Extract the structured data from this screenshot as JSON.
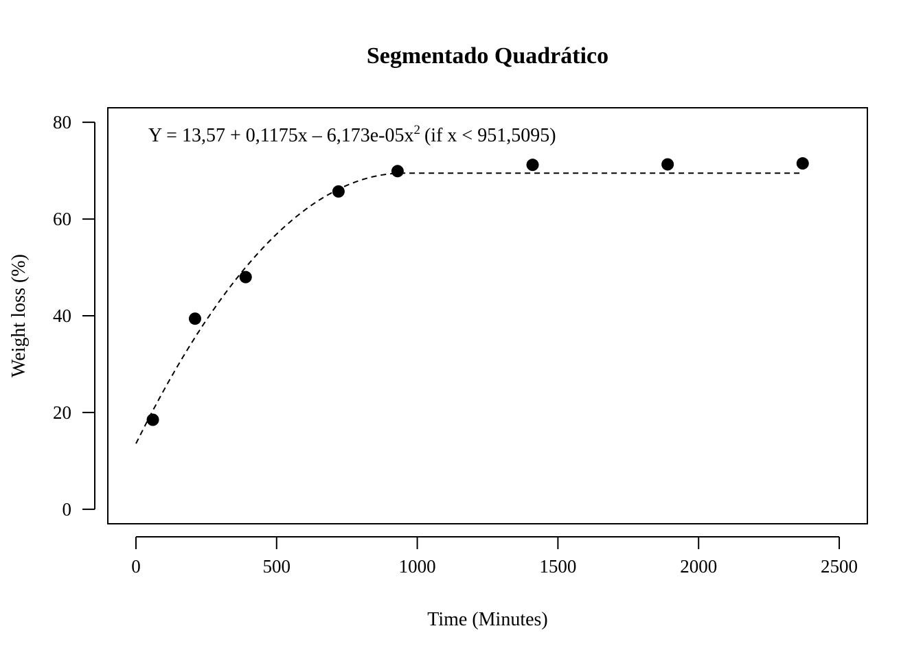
{
  "chart_data": {
    "type": "scatter",
    "title": "Segmentado Quadrático",
    "xlabel": "Time (Minutes)",
    "ylabel": "Weight loss (%)",
    "xlim": [
      -100,
      2600
    ],
    "ylim": [
      -3,
      83
    ],
    "x_ticks": [
      0,
      500,
      1000,
      1500,
      2000,
      2500
    ],
    "y_ticks": [
      0,
      20,
      40,
      60,
      80
    ],
    "x_tick_labels": [
      "0",
      "500",
      "1000",
      "1500",
      "2000",
      "2500"
    ],
    "y_tick_labels": [
      "0",
      "20",
      "40",
      "60",
      "80"
    ],
    "grid": false,
    "legend": "none",
    "annotation": {
      "prefix": "Y = 13,57 + 0,1175x – 6,173e-05x",
      "superscript": "2",
      "condition": "(if x < 951,5095)"
    },
    "points": {
      "x": [
        60,
        210,
        390,
        720,
        930,
        1410,
        1890,
        2370
      ],
      "y": [
        18.5,
        39.4,
        48.0,
        65.7,
        69.9,
        71.2,
        71.3,
        71.5
      ]
    },
    "fit": {
      "model": "segmented-quadratic",
      "intercept": 13.57,
      "linear": 0.1175,
      "quadratic": -6.173e-05,
      "breakpoint": 951.5095,
      "x_start": 0,
      "x_end": 2370
    },
    "colors": {
      "points": "#000000",
      "line": "#000000",
      "frame": "#000000"
    }
  }
}
